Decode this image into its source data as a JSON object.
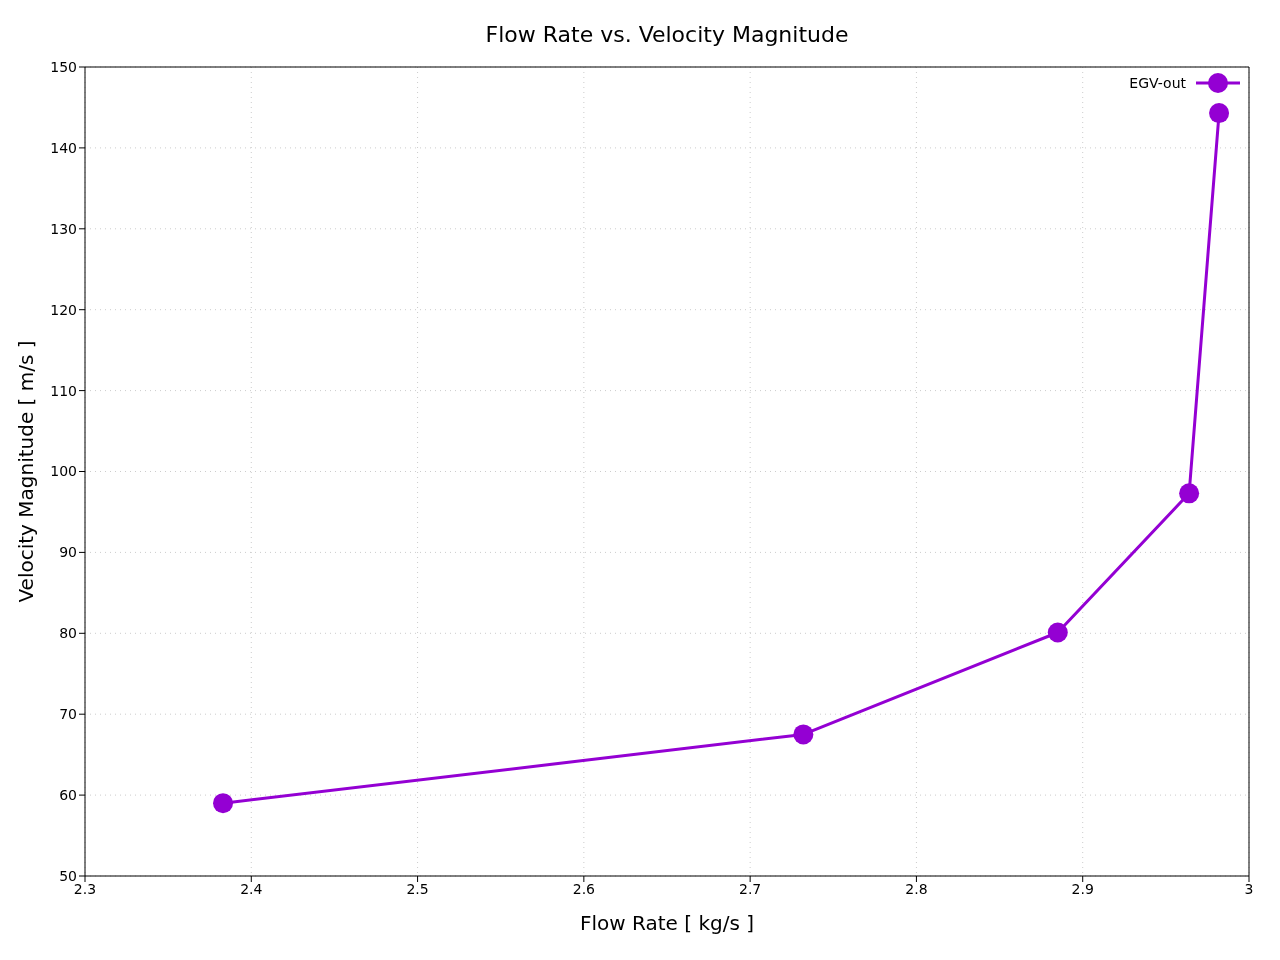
{
  "chart_data": {
    "type": "line",
    "title": "Flow Rate vs. Velocity Magnitude",
    "xlabel": "Flow Rate [ kg/s ]",
    "ylabel": "Velocity Magnitude [ m/s ]",
    "x": [
      2.383,
      2.732,
      2.885,
      2.964,
      2.982
    ],
    "series": [
      {
        "name": "EGV-out",
        "color": "#9400d3",
        "values": [
          59.0,
          67.5,
          80.1,
          97.3,
          144.3
        ]
      }
    ],
    "xlim": [
      2.3,
      3.0
    ],
    "xticks": [
      2.3,
      2.4,
      2.5,
      2.6,
      2.7,
      2.8,
      2.9,
      3
    ],
    "ylim": [
      50,
      150
    ],
    "yticks": [
      50,
      60,
      70,
      80,
      90,
      100,
      110,
      120,
      130,
      140,
      150
    ],
    "grid": true,
    "legend": "top right",
    "marker": "circle",
    "line_style": "solid"
  }
}
